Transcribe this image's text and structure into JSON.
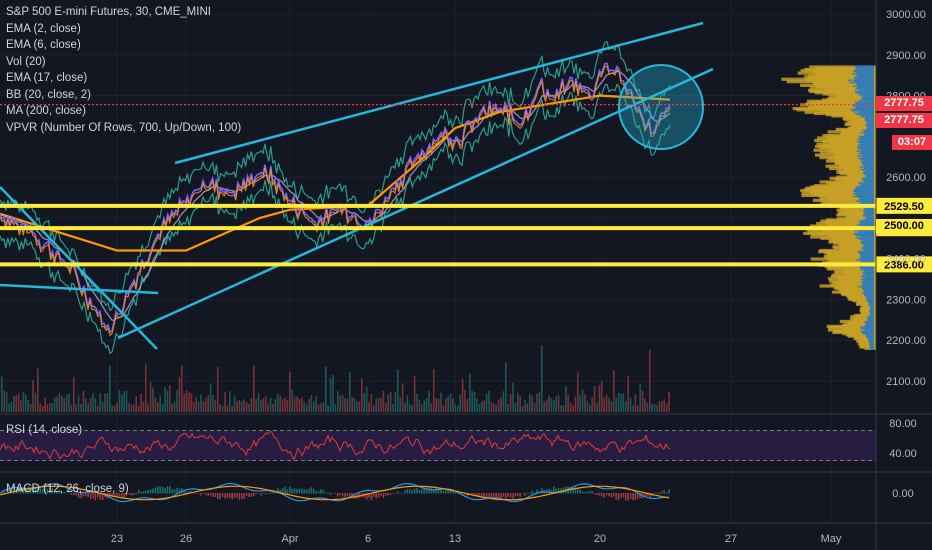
{
  "legend": {
    "title": "S&P 500 E-mini Futures, 30, CME_MINI",
    "indicators": [
      "EMA (2, close)",
      "EMA (6, close)",
      "Vol (20)",
      "EMA (17, close)",
      "BB (20, close, 2)",
      "MA (200, close)",
      "VPVR (Number Of Rows, 700, Up/Down, 100)"
    ]
  },
  "rsi_label": "RSI (14, close)",
  "macd_label": "MACD (12, 26, close, 9)",
  "colors": {
    "background": "#131722",
    "trendline": "#26b8d9",
    "support": "#ffeb3b",
    "price_line": "#f23645",
    "ema_orange": "#ff9800",
    "bollinger": "#2a9d8f",
    "price": "#7b61ff",
    "vpvr_gold": "#c9a227",
    "vpvr_blue": "#2179c9",
    "rsi_line": "#e53935",
    "rsi_band": "#2a1e47"
  },
  "tags": {
    "last_price": "2777.75",
    "ema_price": "2777.75",
    "countdown": "03:07",
    "partial": "2500.00"
  },
  "chart_data": [
    {
      "type": "line",
      "title": "S&P 500 E-mini Futures, 30, CME_MINI",
      "x_tick_labels": [
        "23",
        "26",
        "Apr",
        "6",
        "13",
        "20",
        "27",
        "May"
      ],
      "y_tick_labels": [
        "3000.00",
        "2900.00",
        "2800.00",
        "2600.00",
        "2500.00",
        "2400.00",
        "2300.00",
        "2200.00",
        "2100.00"
      ],
      "ylim": [
        2070,
        3010
      ],
      "series": [
        {
          "name": "Close",
          "x": [
            "Mar 19",
            "Mar 20",
            "Mar 22",
            "Mar 23",
            "Mar 24",
            "Mar 25",
            "Mar 26",
            "Mar 27",
            "Mar 29",
            "Mar 30",
            "Mar 31",
            "Apr 1",
            "Apr 2",
            "Apr 3",
            "Apr 5",
            "Apr 6",
            "Apr 7",
            "Apr 8",
            "Apr 9",
            "Apr 11",
            "Apr 12",
            "Apr 13",
            "Apr 14",
            "Apr 15",
            "Apr 16",
            "Apr 18",
            "Apr 19",
            "Apr 20",
            "Apr 21",
            "Apr 22",
            "Apr 23",
            "Apr 24"
          ],
          "values": [
            2510,
            2460,
            2380,
            2220,
            2330,
            2470,
            2590,
            2560,
            2620,
            2545,
            2490,
            2530,
            2510,
            2485,
            2580,
            2660,
            2710,
            2690,
            2760,
            2770,
            2730,
            2830,
            2790,
            2840,
            2800,
            2880,
            2860,
            2830,
            2790,
            2730,
            2710,
            2777.75
          ]
        },
        {
          "name": "MA (200, close)",
          "x": [
            "Mar 19",
            "Mar 23",
            "Mar 26",
            "Mar 30",
            "Apr 2",
            "Apr 6",
            "Apr 9",
            "Apr 13",
            "Apr 16",
            "Apr 20",
            "Apr 24"
          ],
          "values": [
            2510,
            2420,
            2420,
            2500,
            2520,
            2530,
            2640,
            2720,
            2760,
            2800,
            2790
          ]
        }
      ],
      "support_levels": [
        2529.5,
        2474.75,
        2386
      ],
      "last_price": 2777.75
    },
    {
      "type": "line",
      "title": "RSI (14, close)",
      "y_tick_labels": [
        "80.00",
        "40.00"
      ],
      "ylim": [
        20,
        90
      ],
      "bands": [
        30,
        70
      ]
    },
    {
      "type": "line",
      "title": "MACD (12, 26, close, 9)",
      "y_tick_labels": [
        "0.00"
      ],
      "ylim": [
        -20,
        20
      ]
    }
  ]
}
